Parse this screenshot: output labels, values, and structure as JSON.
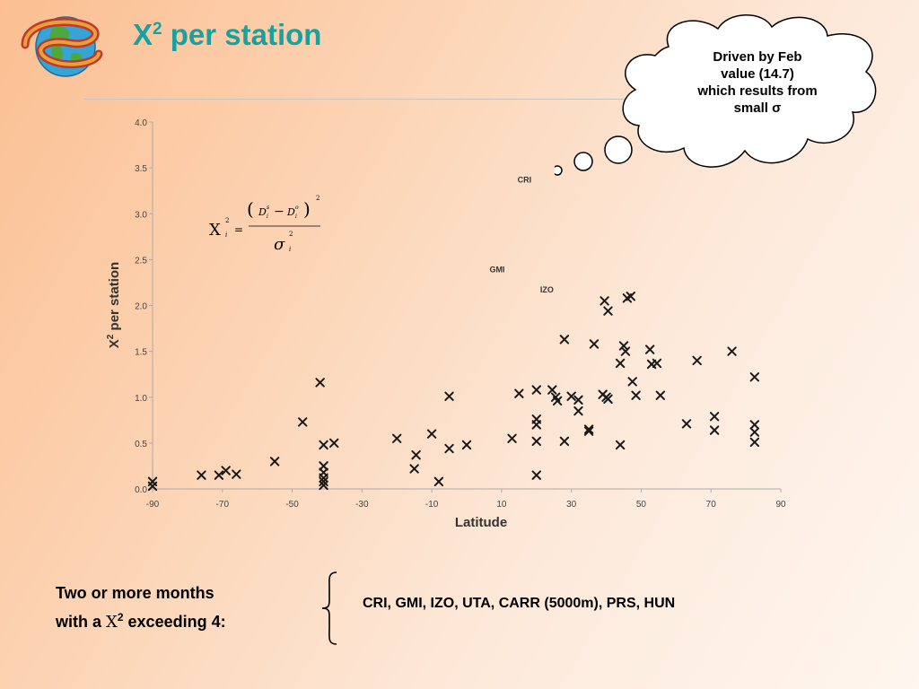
{
  "slide": {
    "title_base": "X",
    "title_sup": "2",
    "title_rest": " per station",
    "cloud_lines": [
      "Driven by Feb",
      "value (14.7)",
      "which results from",
      "small σ"
    ],
    "bottom_left_line1": "Two or more months",
    "bottom_left_line2_pre": "with a ",
    "bottom_left_chi": "Χ",
    "bottom_left_sup": "2",
    "bottom_left_post": " exceeding 4:",
    "stations": "CRI, GMI, IZO, UTA, CARR (5000m), PRS, HUN"
  },
  "chart_data": {
    "type": "scatter",
    "xlabel": "Latitude",
    "ylabel_base": "X",
    "ylabel_sup": "2",
    "ylabel_rest": " per station",
    "xlim": [
      -90,
      90
    ],
    "ylim": [
      0,
      4
    ],
    "xticks": [
      -90,
      -70,
      -50,
      -30,
      -10,
      10,
      30,
      50,
      70,
      90
    ],
    "yticks": [
      "0.0",
      "0.5",
      "1.0",
      "1.5",
      "2.0",
      "2.5",
      "3.0",
      "3.5",
      "4.0"
    ],
    "marker": "x",
    "grid": false,
    "formula": "Χi² = (Di^s − Di^o)² / σi²",
    "annotations": [
      {
        "label": "CRI",
        "x": 12,
        "y": 3.38
      },
      {
        "label": "GMI",
        "x": 14,
        "y": 2.4
      },
      {
        "label": "IZO",
        "x": 28,
        "y": 2.18
      }
    ],
    "points": [
      [
        -90,
        0.08
      ],
      [
        -90,
        0.03
      ],
      [
        -76,
        0.15
      ],
      [
        -71,
        0.15
      ],
      [
        -69,
        0.2
      ],
      [
        -66,
        0.16
      ],
      [
        -55,
        0.3
      ],
      [
        -47,
        0.73
      ],
      [
        -42,
        1.16
      ],
      [
        -41,
        0.48
      ],
      [
        -41,
        0.25
      ],
      [
        -41,
        0.18
      ],
      [
        -41,
        0.12
      ],
      [
        -41,
        0.08
      ],
      [
        -41,
        0.04
      ],
      [
        -38,
        0.5
      ],
      [
        -20,
        0.55
      ],
      [
        -15,
        0.22
      ],
      [
        -14.5,
        0.37
      ],
      [
        -10,
        0.6
      ],
      [
        -8,
        0.08
      ],
      [
        -5,
        0.44
      ],
      [
        -5,
        1.01
      ],
      [
        0,
        0.48
      ],
      [
        13,
        0.55
      ],
      [
        15,
        1.04
      ],
      [
        20,
        0.76
      ],
      [
        20,
        0.7
      ],
      [
        20,
        0.52
      ],
      [
        20,
        0.15
      ],
      [
        20,
        1.08
      ],
      [
        24.5,
        1.08
      ],
      [
        25.5,
        1.0
      ],
      [
        26,
        0.96
      ],
      [
        28,
        0.52
      ],
      [
        28,
        1.63
      ],
      [
        30,
        1.01
      ],
      [
        32,
        0.85
      ],
      [
        32,
        0.97
      ],
      [
        35,
        0.63
      ],
      [
        35,
        0.65
      ],
      [
        36.5,
        1.58
      ],
      [
        39,
        1.03
      ],
      [
        39.5,
        2.05
      ],
      [
        40,
        1.0
      ],
      [
        40.5,
        0.98
      ],
      [
        40.5,
        1.94
      ],
      [
        44,
        1.37
      ],
      [
        44,
        0.48
      ],
      [
        45,
        1.56
      ],
      [
        45.5,
        1.5
      ],
      [
        46,
        2.08
      ],
      [
        47,
        2.1
      ],
      [
        47.5,
        1.17
      ],
      [
        48.5,
        1.02
      ],
      [
        52.5,
        1.52
      ],
      [
        53,
        1.36
      ],
      [
        54.5,
        1.37
      ],
      [
        55.5,
        1.02
      ],
      [
        63,
        0.71
      ],
      [
        66,
        1.4
      ],
      [
        71,
        0.79
      ],
      [
        71,
        0.64
      ],
      [
        76,
        1.5
      ],
      [
        82.5,
        1.22
      ],
      [
        82.5,
        0.7
      ],
      [
        82.5,
        0.62
      ],
      [
        82.5,
        0.51
      ]
    ]
  }
}
